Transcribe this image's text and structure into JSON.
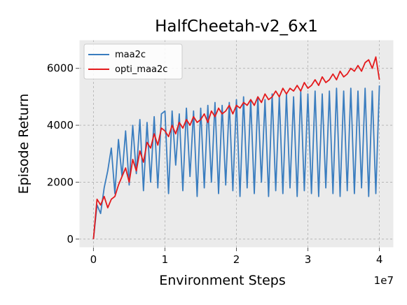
{
  "chart_data": {
    "type": "line",
    "title": "HalfCheetah-v2_6x1",
    "xlabel": "Environment Steps",
    "ylabel": "Episode Return",
    "x_offset_label": "1e7",
    "xlim": [
      -0.2,
      4.2
    ],
    "ylim": [
      -300,
      7000
    ],
    "x_ticks": [
      0,
      1,
      2,
      3,
      4
    ],
    "x_tick_labels": [
      "0",
      "1",
      "2",
      "3",
      "4"
    ],
    "y_ticks": [
      0,
      2000,
      4000,
      6000
    ],
    "y_tick_labels": [
      "0",
      "2000",
      "4000",
      "6000"
    ],
    "grid": true,
    "legend_position": "top-left",
    "series": [
      {
        "name": "maa2c",
        "color": "#3a7dbf",
        "x": [
          0.0,
          0.05,
          0.1,
          0.15,
          0.2,
          0.25,
          0.3,
          0.35,
          0.4,
          0.45,
          0.5,
          0.55,
          0.6,
          0.65,
          0.7,
          0.75,
          0.8,
          0.85,
          0.9,
          0.95,
          1.0,
          1.05,
          1.1,
          1.15,
          1.2,
          1.25,
          1.3,
          1.35,
          1.4,
          1.45,
          1.5,
          1.55,
          1.6,
          1.65,
          1.7,
          1.75,
          1.8,
          1.85,
          1.9,
          1.95,
          2.0,
          2.05,
          2.1,
          2.15,
          2.2,
          2.25,
          2.3,
          2.35,
          2.4,
          2.45,
          2.5,
          2.55,
          2.6,
          2.65,
          2.7,
          2.75,
          2.8,
          2.85,
          2.9,
          2.95,
          3.0,
          3.05,
          3.1,
          3.15,
          3.2,
          3.25,
          3.3,
          3.35,
          3.4,
          3.45,
          3.5,
          3.55,
          3.6,
          3.65,
          3.7,
          3.75,
          3.8,
          3.85,
          3.9,
          3.95,
          4.0
        ],
        "values": [
          0,
          1200,
          900,
          1800,
          2400,
          3200,
          1600,
          3500,
          2200,
          3800,
          1900,
          4000,
          2300,
          4200,
          1700,
          4100,
          2000,
          4300,
          1800,
          4400,
          4500,
          1600,
          4500,
          2600,
          4400,
          1700,
          4600,
          2200,
          4500,
          1500,
          4600,
          1800,
          4700,
          2000,
          4800,
          1600,
          4700,
          1900,
          4800,
          1700,
          4900,
          1500,
          5000,
          1800,
          4900,
          1600,
          5000,
          2000,
          4900,
          1500,
          5100,
          1700,
          5000,
          1600,
          5100,
          1800,
          5000,
          1500,
          5200,
          1700,
          5100,
          1600,
          5200,
          1500,
          5100,
          1800,
          5200,
          1600,
          5300,
          1500,
          5200,
          1700,
          5300,
          1600,
          5200,
          1800,
          5300,
          1500,
          5200,
          1600,
          5400
        ]
      },
      {
        "name": "opti_maa2c",
        "color": "#e41a1c",
        "x": [
          0.0,
          0.05,
          0.1,
          0.15,
          0.2,
          0.25,
          0.3,
          0.35,
          0.4,
          0.45,
          0.5,
          0.55,
          0.6,
          0.65,
          0.7,
          0.75,
          0.8,
          0.85,
          0.9,
          0.95,
          1.0,
          1.05,
          1.1,
          1.15,
          1.2,
          1.25,
          1.3,
          1.35,
          1.4,
          1.45,
          1.5,
          1.55,
          1.6,
          1.65,
          1.7,
          1.75,
          1.8,
          1.85,
          1.9,
          1.95,
          2.0,
          2.05,
          2.1,
          2.15,
          2.2,
          2.25,
          2.3,
          2.35,
          2.4,
          2.45,
          2.5,
          2.55,
          2.6,
          2.65,
          2.7,
          2.75,
          2.8,
          2.85,
          2.9,
          2.95,
          3.0,
          3.05,
          3.1,
          3.15,
          3.2,
          3.25,
          3.3,
          3.35,
          3.4,
          3.45,
          3.5,
          3.55,
          3.6,
          3.65,
          3.7,
          3.75,
          3.8,
          3.85,
          3.9,
          3.95,
          4.0
        ],
        "values": [
          0,
          1400,
          1200,
          1500,
          1100,
          1400,
          1500,
          1900,
          2200,
          2500,
          2000,
          2800,
          2400,
          3100,
          2700,
          3400,
          3200,
          3700,
          3300,
          3900,
          3800,
          3600,
          4000,
          3700,
          4100,
          3900,
          4200,
          4000,
          4300,
          4100,
          4200,
          4400,
          4100,
          4500,
          4300,
          4600,
          4400,
          4500,
          4700,
          4400,
          4700,
          4600,
          4800,
          4700,
          4900,
          4700,
          5000,
          4800,
          5100,
          4900,
          5000,
          5200,
          5000,
          5300,
          5100,
          5300,
          5200,
          5400,
          5200,
          5500,
          5300,
          5400,
          5600,
          5400,
          5700,
          5500,
          5600,
          5800,
          5600,
          5900,
          5700,
          5800,
          6000,
          5900,
          6100,
          5900,
          6200,
          6300,
          6000,
          6400,
          5600
        ]
      }
    ]
  }
}
